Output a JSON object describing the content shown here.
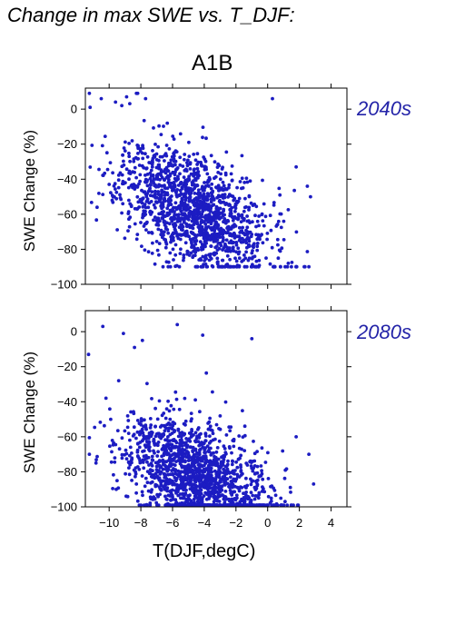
{
  "title": "Change in max SWE vs. T_DJF:",
  "scenario": "A1B",
  "xlabel": "T(DJF,degC)",
  "colors": {
    "points": "#1c1cc2",
    "panel_label": "#2323a8"
  },
  "chart_data": [
    {
      "type": "scatter",
      "panel_label": "2040s",
      "ylabel": "SWE Change (%)",
      "xlim": [
        -11.5,
        5
      ],
      "ylim": [
        -100,
        12
      ],
      "xticks": [
        -10,
        -8,
        -6,
        -4,
        -2,
        0,
        2,
        4
      ],
      "yticks": [
        0,
        -20,
        -40,
        -60,
        -80,
        -100
      ],
      "xtick_labels": [
        "−10",
        "−8",
        "−6",
        "−4",
        "−2",
        "0",
        "2",
        "4"
      ],
      "ytick_labels": [
        "0",
        "−20",
        "−40",
        "−60",
        "−80",
        "−100"
      ],
      "show_xtick_labels": false,
      "grid": false,
      "n_points": 1500,
      "seed": 11,
      "relationship": {
        "x_mean": -4.6,
        "x_sd": 2.3,
        "intercept": -58,
        "slope": -6.5,
        "noise_sd": 16,
        "y_max": 9,
        "y_min": -90
      },
      "extreme_points": [
        [
          -11.2,
          1
        ],
        [
          -10.5,
          6
        ],
        [
          -9.6,
          4
        ],
        [
          -9.2,
          2
        ],
        [
          -8.9,
          7
        ],
        [
          -8.2,
          9
        ],
        [
          -7.7,
          6
        ],
        [
          0.3,
          6
        ],
        [
          1.3,
          -88
        ],
        [
          1.5,
          -90
        ],
        [
          2.7,
          -50
        ],
        [
          2.5,
          -44
        ],
        [
          1.8,
          -33
        ],
        [
          -0.1,
          -85
        ]
      ]
    },
    {
      "type": "scatter",
      "panel_label": "2080s",
      "ylabel": "SWE Change (%)",
      "xlim": [
        -11.5,
        5
      ],
      "ylim": [
        -100,
        12
      ],
      "xticks": [
        -10,
        -8,
        -6,
        -4,
        -2,
        0,
        2,
        4
      ],
      "yticks": [
        0,
        -20,
        -40,
        -60,
        -80,
        -100
      ],
      "xtick_labels": [
        "−10",
        "−8",
        "−6",
        "−4",
        "−2",
        "0",
        "2",
        "4"
      ],
      "ytick_labels": [
        "0",
        "−20",
        "−40",
        "−60",
        "−80",
        "−100"
      ],
      "show_xtick_labels": true,
      "grid": false,
      "n_points": 1500,
      "seed": 29,
      "relationship": {
        "x_mean": -4.6,
        "x_sd": 2.3,
        "intercept": -82,
        "slope": -6.0,
        "noise_sd": 15,
        "y_max": 5,
        "y_min": -99
      },
      "extreme_points": [
        [
          -11.3,
          -13
        ],
        [
          -10.4,
          3
        ],
        [
          -9.1,
          -1
        ],
        [
          -8.4,
          -9
        ],
        [
          -7.9,
          -5
        ],
        [
          -5.7,
          4
        ],
        [
          -4.1,
          -2
        ],
        [
          -1.0,
          -4
        ],
        [
          1.5,
          -99
        ],
        [
          1.1,
          -97
        ],
        [
          2.9,
          -87
        ],
        [
          2.6,
          -70
        ],
        [
          1.8,
          -60
        ],
        [
          -9.9,
          -50
        ],
        [
          -10.2,
          -38
        ]
      ]
    }
  ]
}
